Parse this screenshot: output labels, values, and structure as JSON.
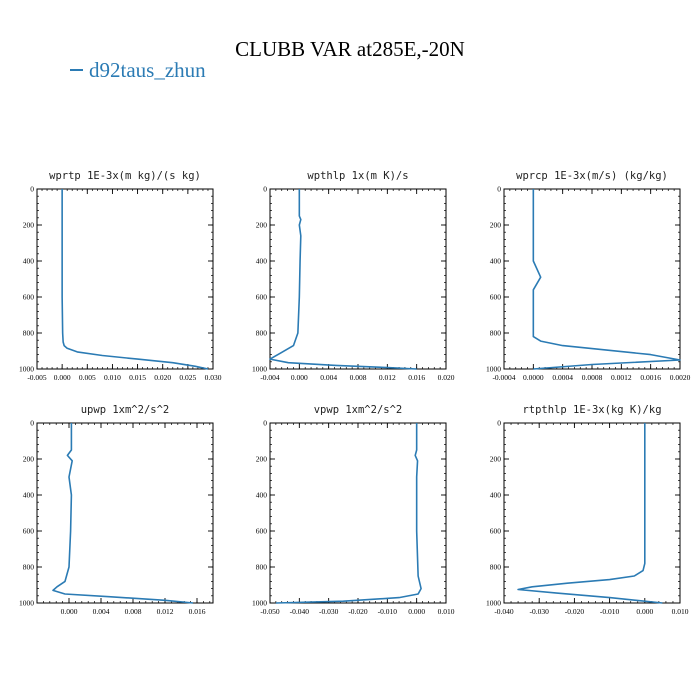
{
  "title": "CLUBB VAR at285E,-20N",
  "legend": {
    "label": "d92taus_zhun",
    "color": "#2b7bb4"
  },
  "chart_data": [
    {
      "type": "line",
      "title": "wprtp  1E-3x(m kg)/(s kg)",
      "xlim": [
        -0.005,
        0.03
      ],
      "ylim": [
        1000,
        0
      ],
      "xticks": [
        -0.005,
        0.0,
        0.005,
        0.01,
        0.015,
        0.02,
        0.025,
        0.03
      ],
      "xtick_labels": [
        "-0.005",
        "0.000",
        "0.005",
        "0.010",
        "0.015",
        "0.020",
        "0.025",
        "0.030"
      ],
      "yticks": [
        0,
        200,
        400,
        600,
        800,
        1000
      ],
      "ytick_labels": [
        "0",
        "200",
        "400",
        "600",
        "800",
        "1000"
      ],
      "series": [
        {
          "name": "d92taus_zhun",
          "x": [
            0.0,
            0.0,
            0.0,
            0.0,
            0.0001,
            0.0002,
            0.0004,
            0.001,
            0.003,
            0.008,
            0.015,
            0.022,
            0.0265,
            0.029
          ],
          "y": [
            0,
            200,
            400,
            600,
            800,
            850,
            870,
            885,
            905,
            925,
            945,
            965,
            985,
            1000
          ]
        }
      ]
    },
    {
      "type": "line",
      "title": "wpthlp  1x(m K)/s",
      "xlim": [
        -0.004,
        0.02
      ],
      "ylim": [
        1000,
        0
      ],
      "xticks": [
        -0.004,
        0.0,
        0.004,
        0.008,
        0.012,
        0.016,
        0.02
      ],
      "xtick_labels": [
        "-0.004",
        "0.000",
        "0.004",
        "0.008",
        "0.012",
        "0.016",
        "0.020"
      ],
      "yticks": [
        0,
        200,
        400,
        600,
        800,
        1000
      ],
      "ytick_labels": [
        "0",
        "200",
        "400",
        "600",
        "800",
        "1000"
      ],
      "series": [
        {
          "name": "d92taus_zhun",
          "x": [
            0.0,
            0.0,
            0.0002,
            0.0,
            0.0002,
            0.0001,
            0.0,
            -0.0002,
            -0.0008,
            -0.0025,
            -0.004,
            -0.0015,
            0.005,
            0.012,
            0.016
          ],
          "y": [
            0,
            150,
            170,
            200,
            260,
            400,
            600,
            800,
            870,
            910,
            945,
            965,
            980,
            992,
            1000
          ]
        }
      ]
    },
    {
      "type": "line",
      "title": "wprcp  1E-3x(m/s) (kg/kg)",
      "xlim": [
        -0.0004,
        0.002
      ],
      "ylim": [
        1000,
        0
      ],
      "xticks": [
        -0.0004,
        0.0,
        0.0004,
        0.0008,
        0.0012,
        0.0016,
        0.002
      ],
      "xtick_labels": [
        "-0.0004",
        "0.0000",
        "0.0004",
        "0.0008",
        "0.0012",
        "0.0016",
        "0.0020"
      ],
      "yticks": [
        0,
        200,
        400,
        600,
        800,
        1000
      ],
      "ytick_labels": [
        "0",
        "200",
        "400",
        "600",
        "800",
        "1000"
      ],
      "series": [
        {
          "name": "d92taus_zhun",
          "x": [
            0.0,
            0.0,
            0.0001,
            0.0,
            0.0,
            0.0,
            0.0001,
            0.0004,
            0.001,
            0.0016,
            0.002,
            0.0008,
            0.0
          ],
          "y": [
            0,
            400,
            490,
            560,
            780,
            820,
            845,
            870,
            895,
            920,
            950,
            975,
            1000
          ]
        }
      ]
    },
    {
      "type": "line",
      "title": "upwp  1xm^2/s^2",
      "xlim": [
        -0.004,
        0.018
      ],
      "ylim": [
        1000,
        0
      ],
      "xticks": [
        0.0,
        0.004,
        0.008,
        0.012,
        0.016
      ],
      "xtick_labels": [
        "0.000",
        "0.004",
        "0.008",
        "0.012",
        "0.016"
      ],
      "yticks": [
        0,
        200,
        400,
        600,
        800,
        1000
      ],
      "ytick_labels": [
        "0",
        "200",
        "400",
        "600",
        "800",
        "1000"
      ],
      "series": [
        {
          "name": "d92taus_zhun",
          "x": [
            0.0003,
            0.0003,
            -0.0002,
            0.0004,
            0.0,
            0.0003,
            0.0002,
            0.0,
            -0.0005,
            -0.0015,
            -0.002,
            -0.0005,
            0.005,
            0.012,
            0.0155
          ],
          "y": [
            0,
            150,
            180,
            210,
            300,
            400,
            600,
            800,
            880,
            910,
            930,
            950,
            965,
            985,
            1000
          ]
        }
      ]
    },
    {
      "type": "line",
      "title": "vpwp  1xm^2/s^2",
      "xlim": [
        -0.05,
        0.01
      ],
      "ylim": [
        1000,
        0
      ],
      "xticks": [
        -0.05,
        -0.04,
        -0.03,
        -0.02,
        -0.01,
        0.0,
        0.01
      ],
      "xtick_labels": [
        "-0.050",
        "-0.040",
        "-0.030",
        "-0.020",
        "-0.010",
        "0.000",
        "0.010"
      ],
      "yticks": [
        0,
        200,
        400,
        600,
        800,
        1000
      ],
      "ytick_labels": [
        "0",
        "200",
        "400",
        "600",
        "800",
        "1000"
      ],
      "series": [
        {
          "name": "d92taus_zhun",
          "x": [
            0.0,
            0.0,
            -0.0005,
            0.0003,
            0.0,
            0.0,
            0.0005,
            0.0015,
            0.0005,
            -0.006,
            -0.025,
            -0.048
          ],
          "y": [
            0,
            150,
            180,
            210,
            300,
            600,
            850,
            920,
            950,
            970,
            990,
            1000
          ]
        }
      ]
    },
    {
      "type": "line",
      "title": "rtpthlp  1E-3x(kg K)/kg",
      "xlim": [
        -0.04,
        0.01
      ],
      "ylim": [
        1000,
        0
      ],
      "xticks": [
        -0.04,
        -0.03,
        -0.02,
        -0.01,
        0.0,
        0.01
      ],
      "xtick_labels": [
        "-0.040",
        "-0.030",
        "-0.020",
        "-0.010",
        "0.000",
        "0.010"
      ],
      "yticks": [
        0,
        200,
        400,
        600,
        800,
        1000
      ],
      "ytick_labels": [
        "0",
        "200",
        "400",
        "600",
        "800",
        "1000"
      ],
      "series": [
        {
          "name": "d92taus_zhun",
          "x": [
            0.0,
            0.0,
            0.0,
            -0.0005,
            -0.003,
            -0.01,
            -0.022,
            -0.032,
            -0.036,
            -0.025,
            -0.01,
            0.005
          ],
          "y": [
            0,
            500,
            780,
            820,
            850,
            870,
            890,
            910,
            925,
            945,
            970,
            1000
          ]
        }
      ]
    }
  ]
}
